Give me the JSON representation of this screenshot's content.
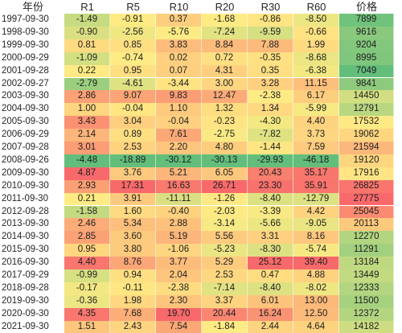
{
  "headers": [
    "年份",
    "R1",
    "R5",
    "R10",
    "R20",
    "R30",
    "R60",
    "价格"
  ],
  "rows": [
    {
      "date": "1997-09-30",
      "vals": [
        "-1.49",
        "-0.91",
        "0.37",
        "-1.68",
        "-0.86",
        "-8.50",
        "7899"
      ]
    },
    {
      "date": "1998-09-30",
      "vals": [
        "-0.90",
        "-2.56",
        "-5.76",
        "-7.24",
        "-9.59",
        "-0.66",
        "9616"
      ]
    },
    {
      "date": "1999-09-30",
      "vals": [
        "0.81",
        "0.85",
        "3.83",
        "8.84",
        "7.88",
        "1.99",
        "9204"
      ]
    },
    {
      "date": "2000-09-29",
      "vals": [
        "-1.09",
        "-0.74",
        "0.02",
        "0.72",
        "-0.35",
        "-8.68",
        "8995"
      ]
    },
    {
      "date": "2001-09-28",
      "vals": [
        "0.22",
        "0.95",
        "0.07",
        "4.31",
        "0.35",
        "-6.38",
        "7049"
      ]
    },
    {
      "date": "2002-09-27",
      "vals": [
        "-2.79",
        "-4.61",
        "-3.44",
        "3.00",
        "3.28",
        "11.15",
        "9841"
      ]
    },
    {
      "date": "2003-09-30",
      "vals": [
        "2.86",
        "9.07",
        "9.83",
        "12.47",
        "-2.38",
        "6.17",
        "14450"
      ]
    },
    {
      "date": "2004-09-30",
      "vals": [
        "1.00",
        "-0.04",
        "1.10",
        "1.32",
        "1.34",
        "-5.99",
        "12791"
      ]
    },
    {
      "date": "2005-09-30",
      "vals": [
        "3.43",
        "3.04",
        "-0.04",
        "-0.23",
        "-4.30",
        "4.40",
        "17532"
      ]
    },
    {
      "date": "2006-09-29",
      "vals": [
        "2.14",
        "0.89",
        "7.61",
        "-2.75",
        "-7.82",
        "3.73",
        "19062"
      ]
    },
    {
      "date": "2007-09-28",
      "vals": [
        "3.01",
        "2.53",
        "2.20",
        "4.80",
        "-1.44",
        "7.59",
        "21594"
      ]
    },
    {
      "date": "2008-09-26",
      "vals": [
        "-4.48",
        "-18.89",
        "-30.12",
        "-30.13",
        "-29.93",
        "-46.18",
        "19120"
      ]
    },
    {
      "date": "2009-09-30",
      "vals": [
        "4.87",
        "3.76",
        "5.21",
        "6.05",
        "20.43",
        "35.17",
        "17916"
      ]
    },
    {
      "date": "2010-09-30",
      "vals": [
        "2.93",
        "17.31",
        "16.63",
        "26.71",
        "23.30",
        "35.91",
        "26825"
      ]
    },
    {
      "date": "2011-09-30",
      "vals": [
        "0.21",
        "3.91",
        "-11.11",
        "-1.26",
        "-8.40",
        "-12.79",
        "27775"
      ]
    },
    {
      "date": "2012-09-28",
      "vals": [
        "-1.58",
        "1.60",
        "-0.40",
        "-2.03",
        "-3.39",
        "4.42",
        "25045"
      ]
    },
    {
      "date": "2013-09-30",
      "vals": [
        "2.46",
        "5.34",
        "2.88",
        "-3.14",
        "-5.66",
        "-9.05",
        "20113"
      ]
    },
    {
      "date": "2014-09-30",
      "vals": [
        "2.85",
        "3.60",
        "5.19",
        "5.56",
        "3.31",
        "8.16",
        "12270"
      ]
    },
    {
      "date": "2015-09-30",
      "vals": [
        "0.95",
        "3.80",
        "-1.06",
        "-5.23",
        "-8.30",
        "-5.74",
        "11291"
      ]
    },
    {
      "date": "2016-09-30",
      "vals": [
        "4.40",
        "8.76",
        "3.77",
        "5.29",
        "25.12",
        "39.40",
        "13184"
      ]
    },
    {
      "date": "2017-09-29",
      "vals": [
        "-0.99",
        "0.94",
        "2.04",
        "2.53",
        "0.47",
        "4.88",
        "13449"
      ]
    },
    {
      "date": "2018-09-28",
      "vals": [
        "-0.17",
        "-0.11",
        "-2.38",
        "-7.14",
        "-8.40",
        "-8.02",
        "12333"
      ]
    },
    {
      "date": "2019-09-30",
      "vals": [
        "-0.36",
        "1.98",
        "2.30",
        "3.37",
        "6.01",
        "13.00",
        "11500"
      ]
    },
    {
      "date": "2020-09-30",
      "vals": [
        "4.35",
        "7.68",
        "19.70",
        "20.44",
        "16.24",
        "12.50",
        "12372"
      ]
    },
    {
      "date": "2021-09-30",
      "vals": [
        "1.51",
        "2.43",
        "7.54",
        "-1.84",
        "2.44",
        "4.64",
        "14182"
      ]
    }
  ],
  "colors": {
    "low": "#63be7b",
    "mid": "#ffeb84",
    "high": "#f8696b"
  }
}
